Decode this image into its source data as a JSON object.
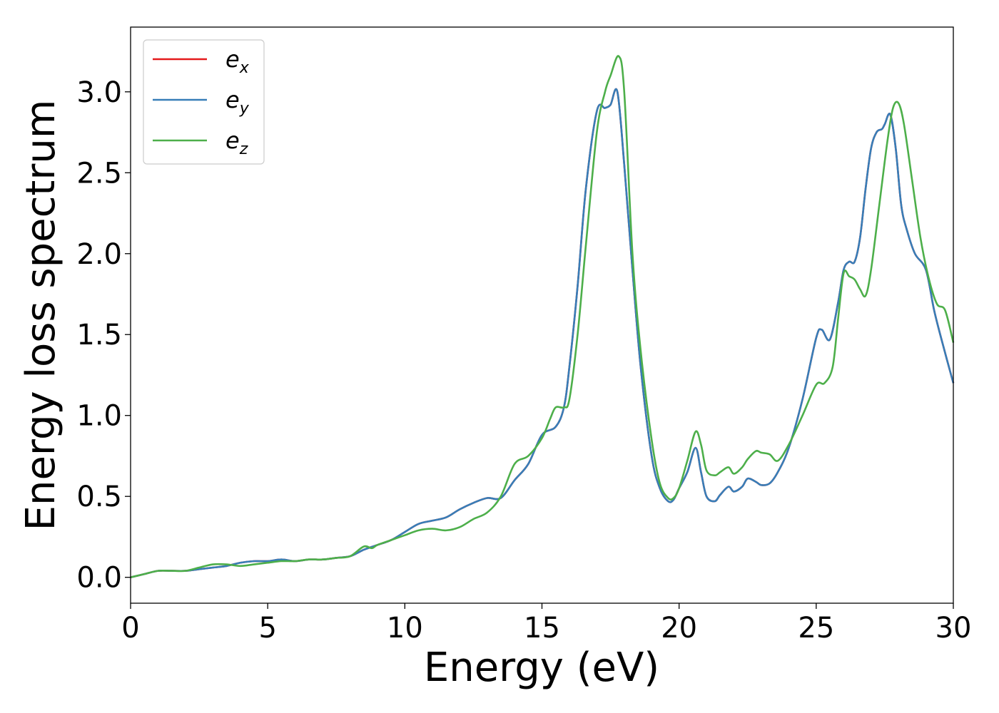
{
  "chart_data": {
    "type": "line",
    "xlabel": "Energy (eV)",
    "ylabel": "Energy loss spectrum",
    "xlim": [
      0,
      30
    ],
    "ylim": [
      -0.16,
      3.4
    ],
    "xticks": [
      0,
      5,
      10,
      15,
      20,
      25,
      30
    ],
    "xtick_labels": [
      "0",
      "5",
      "10",
      "15",
      "20",
      "25",
      "30"
    ],
    "yticks": [
      0.0,
      0.5,
      1.0,
      1.5,
      2.0,
      2.5,
      3.0
    ],
    "ytick_labels": [
      "0.0",
      "0.5",
      "1.0",
      "1.5",
      "2.0",
      "2.5",
      "3.0"
    ],
    "grid": false,
    "legend_position": "top-left",
    "series": [
      {
        "name": "e_x",
        "legend_base": "e",
        "legend_sub": "x",
        "color": "#e41a1c",
        "x": [
          0,
          0.5,
          1,
          1.5,
          2,
          2.5,
          3,
          3.5,
          4,
          4.5,
          5,
          5.5,
          6,
          6.5,
          7,
          7.5,
          8,
          8.5,
          9,
          9.5,
          10,
          10.5,
          11,
          11.5,
          12,
          12.5,
          13,
          13.5,
          14,
          14.5,
          15,
          15.5,
          15.8,
          16,
          16.3,
          16.6,
          17,
          17.3,
          17.5,
          17.75,
          18,
          18.3,
          18.6,
          19,
          19.3,
          19.6,
          19.8,
          20,
          20.3,
          20.6,
          20.8,
          21,
          21.3,
          21.5,
          21.8,
          22,
          22.3,
          22.5,
          22.8,
          23,
          23.3,
          23.6,
          24,
          24.5,
          25,
          25.2,
          25.5,
          25.8,
          26,
          26.2,
          26.4,
          26.6,
          26.8,
          27,
          27.2,
          27.4,
          27.5,
          27.7,
          27.9,
          28.1,
          28.3,
          28.6,
          29,
          29.3,
          29.6,
          30
        ],
        "y": [
          0.0,
          0.02,
          0.04,
          0.04,
          0.04,
          0.05,
          0.06,
          0.07,
          0.09,
          0.1,
          0.1,
          0.11,
          0.1,
          0.11,
          0.11,
          0.12,
          0.13,
          0.17,
          0.2,
          0.23,
          0.28,
          0.33,
          0.35,
          0.37,
          0.42,
          0.46,
          0.49,
          0.49,
          0.6,
          0.7,
          0.88,
          0.93,
          1.05,
          1.3,
          1.8,
          2.4,
          2.88,
          2.9,
          2.92,
          3.0,
          2.55,
          1.9,
          1.3,
          0.75,
          0.55,
          0.47,
          0.48,
          0.55,
          0.65,
          0.8,
          0.65,
          0.5,
          0.47,
          0.51,
          0.56,
          0.53,
          0.56,
          0.61,
          0.59,
          0.57,
          0.58,
          0.65,
          0.8,
          1.1,
          1.48,
          1.53,
          1.47,
          1.7,
          1.9,
          1.95,
          1.95,
          2.1,
          2.4,
          2.65,
          2.75,
          2.77,
          2.8,
          2.86,
          2.65,
          2.3,
          2.15,
          2.0,
          1.9,
          1.65,
          1.45,
          1.2
        ]
      },
      {
        "name": "e_y",
        "legend_base": "e",
        "legend_sub": "y",
        "color": "#377eb8",
        "x": [
          0,
          0.5,
          1,
          1.5,
          2,
          2.5,
          3,
          3.5,
          4,
          4.5,
          5,
          5.5,
          6,
          6.5,
          7,
          7.5,
          8,
          8.5,
          9,
          9.5,
          10,
          10.5,
          11,
          11.5,
          12,
          12.5,
          13,
          13.5,
          14,
          14.5,
          15,
          15.5,
          15.8,
          16,
          16.3,
          16.6,
          17,
          17.3,
          17.5,
          17.75,
          18,
          18.3,
          18.6,
          19,
          19.3,
          19.6,
          19.8,
          20,
          20.3,
          20.6,
          20.8,
          21,
          21.3,
          21.5,
          21.8,
          22,
          22.3,
          22.5,
          22.8,
          23,
          23.3,
          23.6,
          24,
          24.5,
          25,
          25.2,
          25.5,
          25.8,
          26,
          26.2,
          26.4,
          26.6,
          26.8,
          27,
          27.2,
          27.4,
          27.5,
          27.7,
          27.9,
          28.1,
          28.3,
          28.6,
          29,
          29.3,
          29.6,
          30
        ],
        "y": [
          0.0,
          0.02,
          0.04,
          0.04,
          0.04,
          0.05,
          0.06,
          0.07,
          0.09,
          0.1,
          0.1,
          0.11,
          0.1,
          0.11,
          0.11,
          0.12,
          0.13,
          0.17,
          0.2,
          0.23,
          0.28,
          0.33,
          0.35,
          0.37,
          0.42,
          0.46,
          0.49,
          0.49,
          0.6,
          0.7,
          0.88,
          0.93,
          1.05,
          1.3,
          1.8,
          2.4,
          2.88,
          2.9,
          2.92,
          3.0,
          2.55,
          1.9,
          1.3,
          0.75,
          0.55,
          0.47,
          0.48,
          0.55,
          0.65,
          0.8,
          0.65,
          0.5,
          0.47,
          0.51,
          0.56,
          0.53,
          0.56,
          0.61,
          0.59,
          0.57,
          0.58,
          0.65,
          0.8,
          1.1,
          1.48,
          1.53,
          1.47,
          1.7,
          1.9,
          1.95,
          1.95,
          2.1,
          2.4,
          2.65,
          2.75,
          2.77,
          2.8,
          2.86,
          2.65,
          2.3,
          2.15,
          2.0,
          1.9,
          1.65,
          1.45,
          1.2
        ]
      },
      {
        "name": "e_z",
        "legend_base": "e",
        "legend_sub": "z",
        "color": "#4daf4a",
        "x": [
          0,
          0.5,
          1,
          1.5,
          2,
          2.5,
          3,
          3.5,
          4,
          4.5,
          5,
          5.5,
          6,
          6.5,
          7,
          7.5,
          8,
          8.5,
          8.8,
          9,
          9.5,
          10,
          10.5,
          11,
          11.5,
          12,
          12.5,
          13,
          13.5,
          14,
          14.5,
          15,
          15.3,
          15.5,
          15.8,
          16,
          16.3,
          16.6,
          17,
          17.3,
          17.5,
          17.8,
          18,
          18.3,
          18.6,
          19,
          19.3,
          19.6,
          19.8,
          20,
          20.3,
          20.6,
          20.8,
          21,
          21.3,
          21.5,
          21.8,
          22,
          22.3,
          22.5,
          22.8,
          23,
          23.3,
          23.6,
          24,
          24.5,
          25,
          25.3,
          25.6,
          25.8,
          26,
          26.2,
          26.4,
          26.6,
          26.8,
          27,
          27.3,
          27.6,
          27.8,
          28,
          28.2,
          28.5,
          28.8,
          29.1,
          29.4,
          29.7,
          30
        ],
        "y": [
          0.0,
          0.02,
          0.04,
          0.04,
          0.04,
          0.06,
          0.08,
          0.08,
          0.07,
          0.08,
          0.09,
          0.1,
          0.1,
          0.11,
          0.11,
          0.12,
          0.13,
          0.19,
          0.18,
          0.2,
          0.23,
          0.26,
          0.29,
          0.3,
          0.29,
          0.31,
          0.36,
          0.4,
          0.5,
          0.7,
          0.75,
          0.86,
          0.98,
          1.05,
          1.05,
          1.1,
          1.5,
          2.05,
          2.75,
          3.0,
          3.1,
          3.22,
          3.0,
          2.0,
          1.4,
          0.85,
          0.58,
          0.49,
          0.49,
          0.55,
          0.72,
          0.9,
          0.82,
          0.66,
          0.63,
          0.65,
          0.68,
          0.64,
          0.68,
          0.73,
          0.78,
          0.77,
          0.76,
          0.72,
          0.82,
          1.0,
          1.19,
          1.2,
          1.3,
          1.6,
          1.88,
          1.86,
          1.84,
          1.78,
          1.74,
          1.9,
          2.3,
          2.7,
          2.9,
          2.93,
          2.8,
          2.45,
          2.1,
          1.85,
          1.69,
          1.65,
          1.45
        ]
      }
    ]
  }
}
